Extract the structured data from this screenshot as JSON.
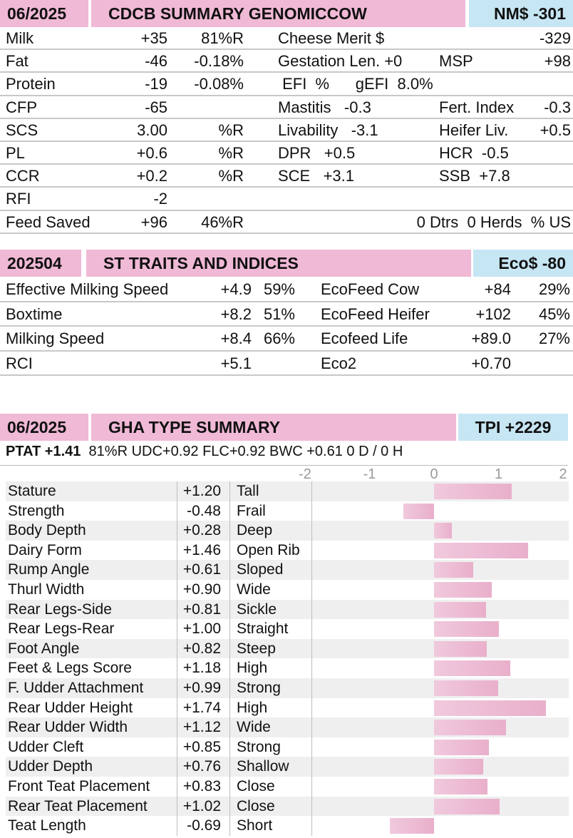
{
  "cdcb": {
    "date": "06/2025",
    "title": "CDCB SUMMARY GENOMICCOW",
    "index": "NM$ -301",
    "rows": [
      {
        "a": "Milk",
        "b": "+35",
        "c": "81%R",
        "d": "Cheese Merit $",
        "e": "",
        "f": "-329"
      },
      {
        "a": "Fat",
        "b": "-46",
        "c": "-0.18%",
        "d": "Gestation Len. +0",
        "e": "MSP",
        "f": "+98"
      },
      {
        "a": "Protein",
        "b": "-19",
        "c": "-0.08%",
        "d": " EFI  %      gEFI  8.0%",
        "e": "",
        "f": ""
      },
      {
        "a": "CFP",
        "b": "-65",
        "c": "",
        "d": "Mastitis   -0.3",
        "e": "Fert. Index",
        "f": "-0.3"
      },
      {
        "a": "SCS",
        "b": "3.00",
        "c": "%R",
        "d": "Livability   -3.1",
        "e": "Heifer Liv.",
        "f": "+0.5"
      },
      {
        "a": "PL",
        "b": "+0.6",
        "c": "%R",
        "d": "DPR   +0.5",
        "e": "HCR  -0.5",
        "f": ""
      },
      {
        "a": "CCR",
        "b": "+0.2",
        "c": "%R",
        "d": "SCE   +3.1",
        "e": "SSB  +7.8",
        "f": ""
      },
      {
        "a": "RFI",
        "b": "-2",
        "c": "",
        "d": "",
        "e": "",
        "f": ""
      },
      {
        "a": "Feed Saved",
        "b": "+96",
        "c": "46%R",
        "d": "",
        "e": "",
        "f": "0 Dtrs  0 Herds  % US"
      }
    ]
  },
  "st": {
    "date": "202504",
    "title": "ST TRAITS AND INDICES",
    "index": "Eco$ -80",
    "rows": [
      {
        "a": "Effective Milking Speed",
        "b": "+4.9",
        "c": "59%",
        "d": "EcoFeed Cow",
        "e": "+84",
        "f": "29%"
      },
      {
        "a": "Boxtime",
        "b": "+8.2",
        "c": "51%",
        "d": "EcoFeed Heifer",
        "e": "+102",
        "f": "45%"
      },
      {
        "a": "Milking Speed",
        "b": "+8.4",
        "c": "66%",
        "d": "Ecofeed Life",
        "e": "+89.0",
        "f": "27%"
      },
      {
        "a": "RCI",
        "b": "+5.1",
        "c": "",
        "d": "Eco2",
        "e": "+0.70",
        "f": ""
      }
    ]
  },
  "gha": {
    "date": "06/2025",
    "title": "GHA TYPE SUMMARY",
    "index": "TPI +2229",
    "ptat_label": "PTAT +1.41",
    "ptat_rest": "81%R   UDC+0.92   FLC+0.92   BWC +0.61    0 D /   0 H",
    "axis_ticks": [
      "-2",
      "-1",
      "0",
      "1",
      "2"
    ]
  },
  "chart_data": {
    "type": "bar",
    "orientation": "horizontal",
    "xlim": [
      -2,
      2
    ],
    "categories": [
      "Stature",
      "Strength",
      "Body Depth",
      "Dairy Form",
      "Rump Angle",
      "Thurl Width",
      "Rear Legs-Side",
      "Rear Legs-Rear",
      "Foot Angle",
      "Feet & Legs Score",
      "F. Udder Attachment",
      "Rear Udder Height",
      "Rear Udder Width",
      "Udder Cleft",
      "Udder Depth",
      "Front Teat Placement",
      "Rear Teat Placement",
      "Teat Length"
    ],
    "value_labels": [
      "+1.20",
      "-0.48",
      "+0.28",
      "+1.46",
      "+0.61",
      "+0.90",
      "+0.81",
      "+1.00",
      "+0.82",
      "+1.18",
      "+0.99",
      "+1.74",
      "+1.12",
      "+0.85",
      "+0.76",
      "+0.83",
      "+1.02",
      "-0.69"
    ],
    "values": [
      1.2,
      -0.48,
      0.28,
      1.46,
      0.61,
      0.9,
      0.81,
      1.0,
      0.82,
      1.18,
      0.99,
      1.74,
      1.12,
      0.85,
      0.76,
      0.83,
      1.02,
      -0.69
    ],
    "descriptors": [
      "Tall",
      "Frail",
      "Deep",
      "Open Rib",
      "Sloped",
      "Wide",
      "Sickle",
      "Straight",
      "Steep",
      "High",
      "Strong",
      "High",
      "Wide",
      "Strong",
      "Shallow",
      "Close",
      "Close",
      "Short"
    ],
    "colors": {
      "bar": "#eab5cf"
    }
  }
}
